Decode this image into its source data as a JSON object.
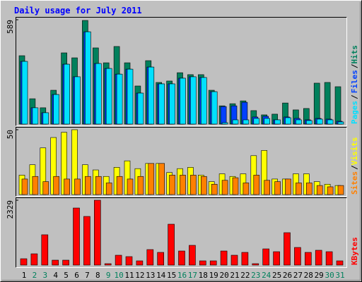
{
  "chart_data": [
    {
      "type": "bar",
      "title": "Daily usage for July 2011",
      "ylim": [
        0,
        589
      ],
      "yticks": [
        589
      ],
      "legend_separator": "/",
      "series": [
        {
          "name": "Hits",
          "color": "#00805c",
          "values": [
            386,
            143,
            92,
            191,
            402,
            374,
            585,
            430,
            346,
            438,
            346,
            215,
            358,
            235,
            243,
            290,
            279,
            279,
            191,
            103,
            115,
            131,
            76,
            52,
            56,
            119,
            80,
            88,
            231,
            235,
            211
          ]
        },
        {
          "name": "Files",
          "color": "#0040ff",
          "values": [
            354,
            92,
            64,
            167,
            338,
            267,
            521,
            342,
            314,
            282,
            310,
            175,
            322,
            227,
            227,
            259,
            267,
            263,
            183,
            99,
            103,
            123,
            40,
            44,
            24,
            40,
            32,
            24,
            32,
            28,
            16
          ]
        },
        {
          "name": "Pages",
          "color": "#00e0ff",
          "values": [
            354,
            92,
            64,
            167,
            338,
            267,
            521,
            342,
            314,
            282,
            310,
            175,
            322,
            227,
            227,
            259,
            267,
            263,
            183,
            8,
            24,
            24,
            32,
            32,
            24,
            36,
            24,
            20,
            28,
            24,
            12
          ]
        }
      ]
    },
    {
      "type": "bar",
      "ylim": [
        0,
        50
      ],
      "yticks": [
        50
      ],
      "legend_separator": "/",
      "series": [
        {
          "name": "Visits",
          "color": "#ffff00",
          "values": [
            15,
            23,
            36,
            44,
            48,
            50,
            23,
            19,
            14,
            21,
            26,
            20,
            24,
            24,
            17,
            20,
            21,
            15,
            10,
            16,
            14,
            16,
            30,
            34,
            12,
            12,
            16,
            16,
            10,
            8,
            7
          ]
        },
        {
          "name": "Sites",
          "color": "#ff8000",
          "values": [
            12,
            14,
            10,
            14,
            12,
            12,
            14,
            14,
            9,
            14,
            12,
            14,
            24,
            24,
            15,
            15,
            15,
            14,
            8,
            11,
            13,
            9,
            15,
            11,
            10,
            12,
            9,
            9,
            7,
            6,
            7
          ]
        }
      ]
    },
    {
      "type": "bar",
      "ylim": [
        0,
        2329
      ],
      "yticks": [
        2329
      ],
      "categories": [
        "1",
        "2",
        "3",
        "4",
        "5",
        "6",
        "7",
        "8",
        "9",
        "10",
        "11",
        "12",
        "13",
        "14",
        "15",
        "16",
        "17",
        "18",
        "19",
        "20",
        "21",
        "22",
        "23",
        "24",
        "25",
        "26",
        "27",
        "28",
        "29",
        "30",
        "31"
      ],
      "x_label_colors": [
        "#000",
        "#00805c",
        "#00805c",
        "#000",
        "#000",
        "#000",
        "#000",
        "#000",
        "#00805c",
        "#00805c",
        "#000",
        "#000",
        "#000",
        "#000",
        "#000",
        "#00805c",
        "#00805c",
        "#000",
        "#000",
        "#000",
        "#000",
        "#000",
        "#00805c",
        "#00805c",
        "#000",
        "#000",
        "#000",
        "#000",
        "#000",
        "#00805c",
        "#00805c"
      ],
      "series": [
        {
          "name": "KBytes",
          "color": "#ff0000",
          "values": [
            228,
            405,
            1089,
            177,
            177,
            2050,
            1747,
            2329,
            51,
            354,
            304,
            152,
            557,
            456,
            1468,
            506,
            709,
            152,
            152,
            506,
            354,
            456,
            51,
            582,
            481,
            1164,
            633,
            456,
            532,
            481,
            152
          ]
        }
      ]
    }
  ]
}
